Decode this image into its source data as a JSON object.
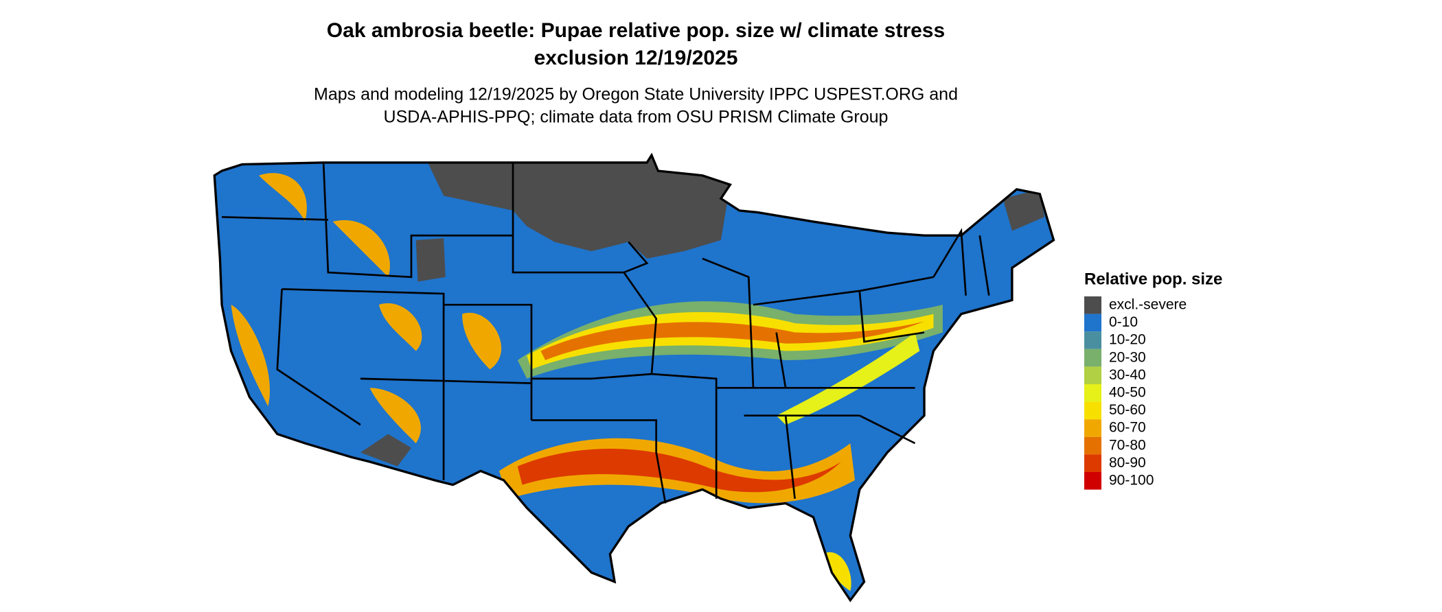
{
  "title": [
    "Oak ambrosia beetle: Pupae relative pop. size w/ climate stress",
    "exclusion 12/19/2025"
  ],
  "subtitle": [
    "Maps and modeling 12/19/2025 by Oregon State University IPPC USPEST.ORG and",
    "USDA-APHIS-PPQ; climate data from OSU PRISM Climate Group"
  ],
  "legend": {
    "title": "Relative pop. size",
    "items": [
      {
        "label": "excl.-severe",
        "color": "#4d4d4d"
      },
      {
        "label": "0-10",
        "color": "#1f74cc"
      },
      {
        "label": "10-20",
        "color": "#4a8fa0"
      },
      {
        "label": "20-30",
        "color": "#78b06c"
      },
      {
        "label": "30-40",
        "color": "#b1d043"
      },
      {
        "label": "40-50",
        "color": "#e6f019"
      },
      {
        "label": "50-60",
        "color": "#f7e000"
      },
      {
        "label": "60-70",
        "color": "#f0a800"
      },
      {
        "label": "70-80",
        "color": "#e57200"
      },
      {
        "label": "80-90",
        "color": "#dd3a00"
      },
      {
        "label": "90-100",
        "color": "#d00000"
      }
    ]
  }
}
